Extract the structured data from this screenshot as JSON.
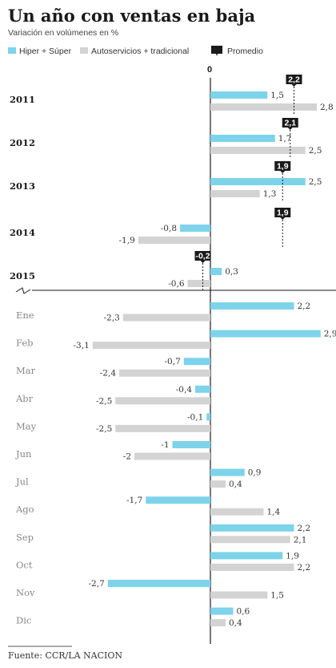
{
  "header": {
    "title": "Un año con ventas en baja",
    "subtitle": "Variación en volúmenes en %"
  },
  "legend": {
    "hiper": "Hiper + Súper",
    "auto": "Autoservicios + tradicional",
    "promedio": "Promedio"
  },
  "colors": {
    "hiper": "#7dd3ea",
    "auto": "#d3d3d3",
    "promedio": "#1a1a1a",
    "axis": "#1a1a1a"
  },
  "footer": {
    "source": "Fuente: CCR/LA NACION"
  },
  "chart_data": {
    "type": "bar",
    "orientation": "horizontal",
    "zero_label": "0",
    "annual": {
      "categories": [
        "2011",
        "2012",
        "2013",
        "2014",
        "2015"
      ],
      "series": [
        {
          "name": "Hiper + Súper",
          "values": [
            1.5,
            1.7,
            2.5,
            -0.8,
            0.3
          ]
        },
        {
          "name": "Autoservicios + tradicional",
          "values": [
            2.8,
            2.5,
            1.3,
            -1.9,
            -0.6
          ]
        },
        {
          "name": "Promedio",
          "values": [
            2.2,
            2.1,
            1.9,
            1.9,
            -0.2
          ]
        }
      ]
    },
    "monthly": {
      "categories": [
        "Ene",
        "Feb",
        "Mar",
        "Abr",
        "May",
        "Jun",
        "Jul",
        "Ago",
        "Sep",
        "Oct",
        "Nov",
        "Dic"
      ],
      "series": [
        {
          "name": "Hiper + Súper",
          "values": [
            2.2,
            2.9,
            -0.7,
            -0.4,
            -0.1,
            -1,
            0.9,
            -1.7,
            2.2,
            1.9,
            -2.7,
            0.6
          ]
        },
        {
          "name": "Autoservicios + tradicional",
          "values": [
            -2.3,
            -3.1,
            -2.4,
            -2.5,
            -2.5,
            -2,
            0.4,
            1.4,
            2.1,
            2.2,
            1.5,
            0.4
          ]
        }
      ]
    },
    "grid": false,
    "legend_position": "top"
  }
}
